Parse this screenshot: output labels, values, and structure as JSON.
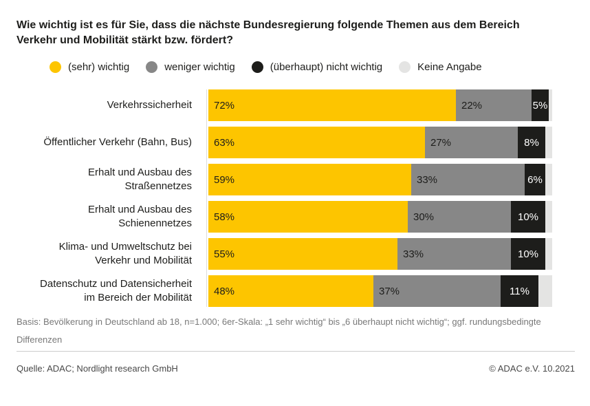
{
  "title": "Wie wichtig ist es für Sie, dass die nächste Bundesregierung folgende Themen aus dem Bereich\nVerkehr und Mobilität stärkt bzw. fördert?",
  "legend": {
    "items": [
      {
        "label": "(sehr) wichtig",
        "color": "#fdc500"
      },
      {
        "label": "weniger wichtig",
        "color": "#878787"
      },
      {
        "label": "(überhaupt) nicht wichtig",
        "color": "#1d1d1b"
      },
      {
        "label": "Keine Angabe",
        "color": "#e4e4e3"
      }
    ]
  },
  "chart_data": {
    "type": "bar",
    "orientation": "horizontal",
    "stacked": true,
    "unit": "%",
    "xlim": [
      0,
      100
    ],
    "grid": false,
    "legend_position": "top",
    "title": "Wie wichtig ist es für Sie, dass die nächste Bundesregierung folgende Themen aus dem Bereich Verkehr und Mobilität stärkt bzw. fördert?",
    "categories": [
      "Verkehrssicherheit",
      "Öffentlicher Verkehr (Bahn, Bus)",
      "Erhalt und Ausbau des\nStraßennetzes",
      "Erhalt und Ausbau des\nSchienennetzes",
      "Klima- und Umweltschutz bei\nVerkehr und Mobilität",
      "Datenschutz und Datensicherheit\nim Bereich der Mobilität"
    ],
    "series": [
      {
        "key": "sehr-wichtig",
        "name": "(sehr) wichtig",
        "color": "#fdc500",
        "value_color": "#1d1d1b",
        "value_align": "left",
        "show_values": true,
        "values": [
          72,
          63,
          59,
          58,
          55,
          48
        ]
      },
      {
        "key": "weniger-wichtig",
        "name": "weniger wichtig",
        "color": "#878787",
        "value_color": "#1d1d1b",
        "value_align": "left",
        "show_values": true,
        "values": [
          22,
          27,
          33,
          30,
          33,
          37
        ]
      },
      {
        "key": "nicht-wichtig",
        "name": "(überhaupt) nicht wichtig",
        "color": "#1d1d1b",
        "value_color": "#ffffff",
        "value_align": "center",
        "show_values": true,
        "values": [
          5,
          8,
          6,
          10,
          10,
          11
        ]
      },
      {
        "key": "keine-angabe",
        "name": "Keine Angabe",
        "color": "#e4e4e3",
        "value_color": "#1d1d1b",
        "value_align": "left",
        "show_values": false,
        "values": [
          1,
          2,
          2,
          2,
          2,
          4
        ]
      }
    ]
  },
  "footer": {
    "basis": "Basis: Bevölkerung in Deutschland ab 18, n=1.000; 6er-Skala: „1 sehr wichtig“ bis „6 überhaupt nicht wichtig“; ggf. rundungsbedingte Differenzen",
    "source": "Quelle: ADAC; Nordlight research GmbH",
    "copyright": "© ADAC e.V. 10.2021"
  }
}
